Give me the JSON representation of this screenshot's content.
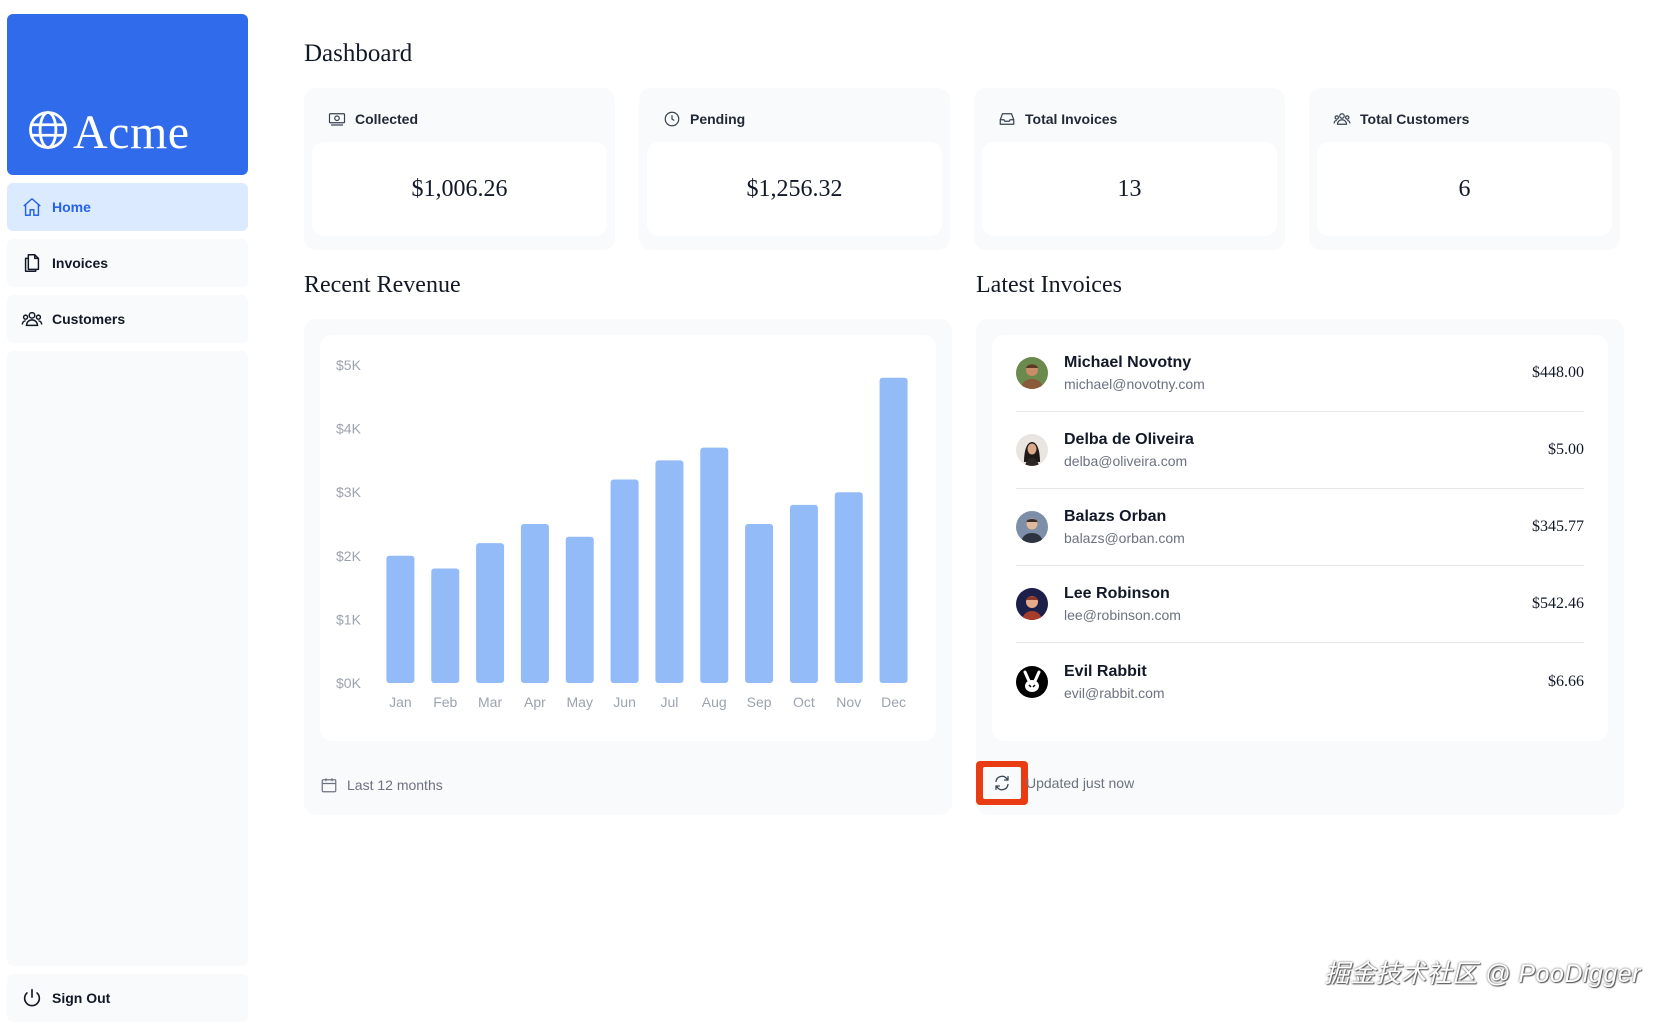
{
  "brand": {
    "name": "Acme"
  },
  "nav": [
    {
      "label": "Home",
      "icon": "home-icon",
      "active": true
    },
    {
      "label": "Invoices",
      "icon": "document-icon",
      "active": false
    },
    {
      "label": "Customers",
      "icon": "users-icon",
      "active": false
    }
  ],
  "signout": {
    "label": "Sign Out",
    "icon": "power-icon"
  },
  "page_title": "Dashboard",
  "cards": [
    {
      "label": "Collected",
      "value": "$1,006.26",
      "icon": "banknotes-icon"
    },
    {
      "label": "Pending",
      "value": "$1,256.32",
      "icon": "clock-icon"
    },
    {
      "label": "Total Invoices",
      "value": "13",
      "icon": "inbox-icon"
    },
    {
      "label": "Total Customers",
      "value": "6",
      "icon": "users-icon"
    }
  ],
  "revenue": {
    "title": "Recent Revenue",
    "footer": "Last 12 months"
  },
  "chart_data": {
    "type": "bar",
    "categories": [
      "Jan",
      "Feb",
      "Mar",
      "Apr",
      "May",
      "Jun",
      "Jul",
      "Aug",
      "Sep",
      "Oct",
      "Nov",
      "Dec"
    ],
    "values": [
      2000,
      1800,
      2200,
      2500,
      2300,
      3200,
      3500,
      3700,
      2500,
      2800,
      3000,
      4800
    ],
    "yticks": [
      "$0K",
      "$1K",
      "$2K",
      "$3K",
      "$4K",
      "$5K"
    ],
    "ylim": [
      0,
      5000
    ],
    "bar_color": "#93bbf7",
    "grid": false
  },
  "latest": {
    "title": "Latest Invoices",
    "footer": "Updated just now",
    "items": [
      {
        "name": "Michael Novotny",
        "email": "michael@novotny.com",
        "amount": "$448.00",
        "avatar": "avatar-michael"
      },
      {
        "name": "Delba de Oliveira",
        "email": "delba@oliveira.com",
        "amount": "$5.00",
        "avatar": "avatar-delba"
      },
      {
        "name": "Balazs Orban",
        "email": "balazs@orban.com",
        "amount": "$345.77",
        "avatar": "avatar-balazs"
      },
      {
        "name": "Lee Robinson",
        "email": "lee@robinson.com",
        "amount": "$542.46",
        "avatar": "avatar-lee"
      },
      {
        "name": "Evil Rabbit",
        "email": "evil@rabbit.com",
        "amount": "$6.66",
        "avatar": "avatar-evil-rabbit"
      }
    ]
  },
  "watermark": "掘金技术社区 @ PooDigger",
  "colors": {
    "brand": "#2f6bea",
    "active_bg": "#dbeafe",
    "active_text": "#2563eb",
    "highlight": "#ea3c12"
  }
}
